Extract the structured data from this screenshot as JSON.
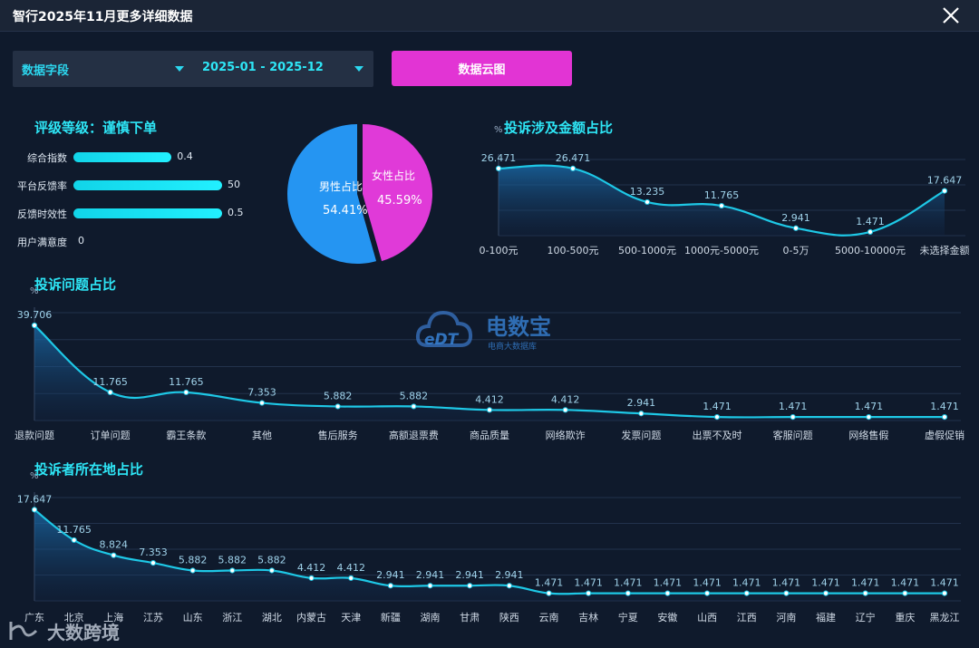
{
  "window": {
    "title": "智行2025年11月更多详细数据"
  },
  "filters": {
    "field": "数据字段",
    "date_range": "2025-01 - 2025-12",
    "cloud_button": "数据云图"
  },
  "rating": {
    "title": "评级等级：谨慎下单",
    "metrics": [
      {
        "label": "综合指数",
        "value": "0.4",
        "fill": 0.66
      },
      {
        "label": "平台反馈率",
        "value": "50",
        "fill": 1.0
      },
      {
        "label": "反馈时效性",
        "value": "0.5",
        "fill": 1.0
      },
      {
        "label": "用户满意度",
        "value": "0",
        "fill": 0
      }
    ]
  },
  "gender": {
    "male_label": "男性占比",
    "male_value": "54.41%",
    "female_label": "女性占比",
    "female_value": "45.59%",
    "male_pct": 54.41,
    "female_pct": 45.59,
    "male_color": "#2595f2",
    "female_color": "#e03ad8"
  },
  "watermarks": {
    "edt_brand": "电数宝",
    "edt_sub": "电商大数据库",
    "corner": "大数跨境"
  },
  "chart_data": [
    {
      "type": "area",
      "title": "投诉涉及金额占比",
      "unit": "%",
      "categories": [
        "0-100元",
        "100-500元",
        "500-1000元",
        "1000元-5000元",
        "0-5万",
        "5000-10000元",
        "未选择金额"
      ],
      "values": [
        26.471,
        26.471,
        13.235,
        11.765,
        2.941,
        1.471,
        17.647
      ],
      "labels": [
        "26.471",
        "26.471",
        "13.235",
        "11.765",
        "2.941",
        "1.471",
        "17.647"
      ],
      "ylim": [
        0,
        30
      ]
    },
    {
      "type": "area",
      "title": "投诉问题占比",
      "unit": "%",
      "categories": [
        "退款问题",
        "订单问题",
        "霸王条款",
        "其他",
        "售后服务",
        "高额退票费",
        "商品质量",
        "网络欺诈",
        "发票问题",
        "出票不及时",
        "客服问题",
        "网络售假",
        "虚假促销"
      ],
      "values": [
        39.706,
        11.765,
        11.765,
        7.353,
        5.882,
        5.882,
        4.412,
        4.412,
        2.941,
        1.471,
        1.471,
        1.471,
        1.471
      ],
      "labels": [
        "39.706",
        "11.765",
        "11.765",
        "7.353",
        "5.882",
        "5.882",
        "4.412",
        "4.412",
        "2.941",
        "1.471",
        "1.471",
        "1.471",
        "1.471"
      ],
      "ylim": [
        0,
        45
      ]
    },
    {
      "type": "area",
      "title": "投诉者所在地占比",
      "unit": "%",
      "categories": [
        "广东",
        "北京",
        "上海",
        "江苏",
        "山东",
        "浙江",
        "湖北",
        "内蒙古",
        "天津",
        "新疆",
        "湖南",
        "甘肃",
        "陕西",
        "云南",
        "吉林",
        "宁夏",
        "安徽",
        "山西",
        "江西",
        "河南",
        "福建",
        "辽宁",
        "重庆",
        "黑龙江"
      ],
      "values": [
        17.647,
        11.765,
        8.824,
        7.353,
        5.882,
        5.882,
        5.882,
        4.412,
        4.412,
        2.941,
        2.941,
        2.941,
        2.941,
        1.471,
        1.471,
        1.471,
        1.471,
        1.471,
        1.471,
        1.471,
        1.471,
        1.471,
        1.471,
        1.471
      ],
      "labels": [
        "17.647",
        "11.765",
        "8.824",
        "7.353",
        "5.882",
        "5.882",
        "5.882",
        "4.412",
        "4.412",
        "2.941",
        "2.941",
        "2.941",
        "2.941",
        "1.471",
        "1.471",
        "1.471",
        "1.471",
        "1.471",
        "1.471",
        "1.471",
        "1.471",
        "1.471",
        "1.471",
        "1.471"
      ],
      "ylim": [
        0,
        20
      ]
    }
  ],
  "colors": {
    "accent": "#2ee6f6",
    "line": "#1ec8e6",
    "button": "#e234d4",
    "bg": "#0f1a2c"
  }
}
